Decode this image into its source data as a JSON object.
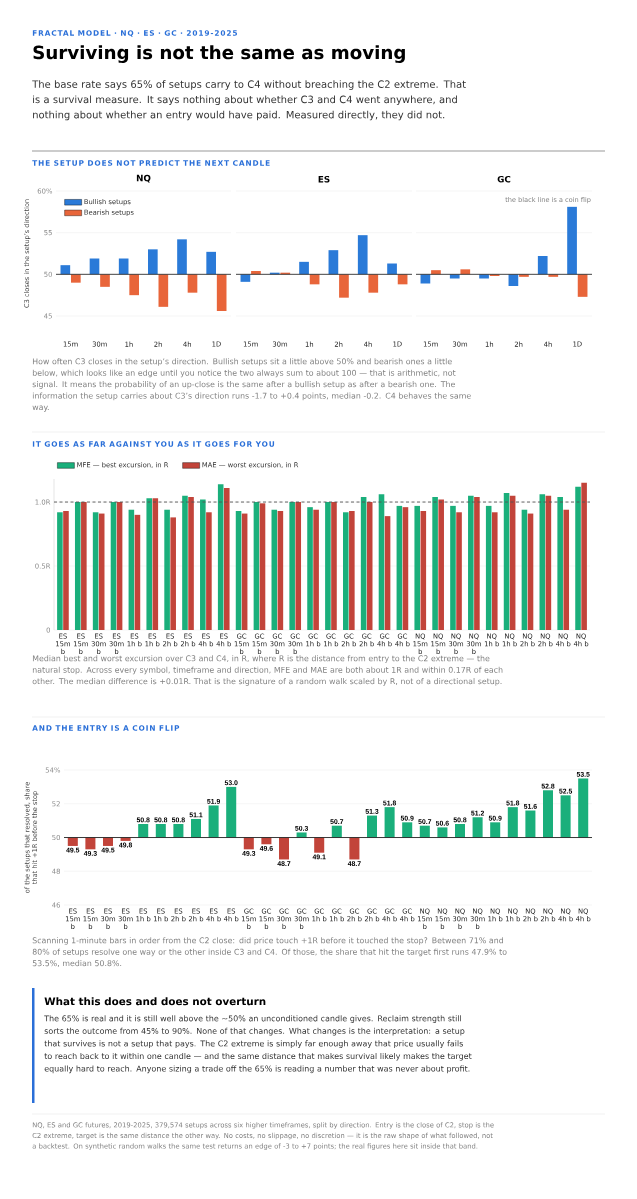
{
  "chart_data": [
    {
      "type": "other",
      "title": "Surviving is not the same as moving",
      "subtitle": "The base rate says 65% of setups carry to C4 without breaching the C2 extreme. That is a survival measure. It says nothing about whether C3 and C4 went anywhere, and nothing about whether an entry would have paid. Measured directly, they did not.",
      "annotations": [
        "FRACTAL MODEL · NQ · ES · GC · 2019-2025"
      ]
    },
    {
      "type": "bar",
      "title": "NQ",
      "ylabel": "C3 closes in the setup’s direction",
      "categories": [
        "15m",
        "30m",
        "1h",
        "2h",
        "4h",
        "1D"
      ],
      "series": [
        {
          "name": "Bullish setups",
          "color": "#2a7ad8",
          "base": [
            50,
            50,
            50,
            50,
            50,
            50
          ],
          "values": [
            1.1,
            1.9,
            1.9,
            3.0,
            4.2,
            2.7
          ]
        },
        {
          "name": "Bearish setups",
          "color": "#e8653a",
          "base": [
            50,
            50,
            50,
            50,
            50,
            50
          ],
          "values": [
            -1.0,
            -1.5,
            -2.5,
            -3.9,
            -2.2,
            -4.4
          ]
        }
      ],
      "ylim": [
        45,
        60
      ],
      "yticks": [
        45,
        50,
        55,
        {
          "value": 60,
          "label": "60%"
        }
      ],
      "grid": "y",
      "legend": "top left",
      "ref_lines": [
        {
          "axis": "y",
          "value": 50,
          "color": "#333333"
        }
      ],
      "annotations": [
        "THE SETUP DOES NOT PREDICT THE NEXT CANDLE",
        "How often C3 closes in the setup’s direction. Bullish setups sit a little above 50% and bearish ones a little below, which looks like an edge until you notice the two always sum to about 100 — that is arithmetic, not signal. It means the probability of an up-close is the same after a bullish setup as after a bearish one. The information the setup carries about C3’s direction runs -1.7 to +0.4 points, median -0.2. C4 behaves the same way."
      ]
    },
    {
      "type": "bar",
      "title": "ES",
      "categories": [
        "15m",
        "30m",
        "1h",
        "2h",
        "4h",
        "1D"
      ],
      "series": [
        {
          "color": "#2a7ad8",
          "base": [
            50,
            50,
            50,
            50,
            50,
            50
          ],
          "values": [
            -0.9,
            0.2,
            1.5,
            2.9,
            4.7,
            1.3
          ]
        },
        {
          "color": "#e8653a",
          "base": [
            50,
            50,
            50,
            50,
            50,
            50
          ],
          "values": [
            0.4,
            0.2,
            -1.2,
            -2.8,
            -2.2,
            -1.2
          ]
        }
      ],
      "ylim": [
        45,
        60
      ],
      "yticks": [
        45,
        50,
        55,
        60
      ],
      "grid": "y",
      "tick_labels": "x",
      "ref_lines": [
        {
          "axis": "y",
          "value": 50,
          "color": "#333333"
        }
      ]
    },
    {
      "type": "bar",
      "title": "GC",
      "categories": [
        "15m",
        "30m",
        "1h",
        "2h",
        "4h",
        "1D"
      ],
      "series": [
        {
          "color": "#2a7ad8",
          "base": [
            50,
            50,
            50,
            50,
            50,
            50
          ],
          "values": [
            -1.1,
            -0.5,
            -0.5,
            -1.4,
            2.2,
            8.1
          ]
        },
        {
          "color": "#e8653a",
          "base": [
            50,
            50,
            50,
            50,
            50,
            50
          ],
          "values": [
            0.5,
            0.6,
            -0.2,
            -0.3,
            -0.3,
            -2.7
          ]
        }
      ],
      "ylim": [
        45,
        60
      ],
      "yticks": [
        45,
        50,
        55,
        60
      ],
      "grid": "y",
      "tick_labels": "x",
      "ref_lines": [
        {
          "axis": "y",
          "value": 50,
          "color": "#333333"
        }
      ],
      "annotations": [
        "the black line is a coin flip"
      ]
    },
    {
      "type": "bar",
      "categories": [
        "ES 15m b",
        "ES 15m b",
        "ES 30m b",
        "ES 30m b",
        "ES 1h b",
        "ES 1h b",
        "ES 2h b",
        "ES 2h b",
        "ES 4h b",
        "ES 4h b",
        "GC 15m b",
        "GC 15m b",
        "GC 30m b",
        "GC 30m b",
        "GC 1h b",
        "GC 1h b",
        "GC 2h b",
        "GC 2h b",
        "GC 4h b",
        "GC 4h b",
        "NQ 15m b",
        "NQ 15m b",
        "NQ 30m b",
        "NQ 30m b",
        "NQ 1h b",
        "NQ 1h b",
        "NQ 2h b",
        "NQ 2h b",
        "NQ 4h b",
        "NQ 4h b"
      ],
      "series": [
        {
          "name": "MFE — best excursion, in R",
          "color": "#1aaf7b",
          "values": [
            0.92,
            1.0,
            0.92,
            1.0,
            0.94,
            1.03,
            0.94,
            1.05,
            1.02,
            1.14,
            0.93,
            1.0,
            0.94,
            1.0,
            0.96,
            1.0,
            0.92,
            1.04,
            1.06,
            0.97,
            0.97,
            1.04,
            0.97,
            1.05,
            0.97,
            1.07,
            0.94,
            1.06,
            1.04,
            1.12
          ]
        },
        {
          "name": "MAE — worst excursion, in R",
          "color": "#c2443a",
          "values": [
            0.93,
            1.0,
            0.91,
            1.0,
            0.9,
            1.03,
            0.88,
            1.04,
            0.92,
            1.11,
            0.91,
            0.99,
            0.93,
            1.0,
            0.94,
            1.0,
            0.93,
            1.0,
            0.89,
            0.96,
            0.93,
            1.02,
            0.92,
            1.04,
            0.92,
            1.05,
            0.91,
            1.05,
            0.94,
            1.15
          ]
        }
      ],
      "ylim": [
        0,
        1.18
      ],
      "yticks": [
        0,
        {
          "value": 0.5,
          "label": "0.5R"
        },
        {
          "value": 1,
          "label": "1.0R"
        }
      ],
      "grid": "y",
      "legend": "top left",
      "ref_lines": [
        {
          "axis": "y",
          "value": 1,
          "color": "#555555",
          "line_style": "dashed"
        }
      ],
      "annotations": [
        "IT GOES AS FAR AGAINST YOU AS IT GOES FOR YOU",
        "Median best and worst excursion over C3 and C4, in R, where R is the distance from entry to the C2 extreme — the natural stop. Across every symbol, timeframe and direction, MFE and MAE are both about 1R and within 0.17R of each other. The median difference is +0.01R. That is the signature of a random walk scaled by R, not of a directional setup."
      ]
    },
    {
      "type": "bar",
      "ylabel": "of the setups that resolved, share that hit +1R before the stop",
      "categories": [
        "ES 15m b",
        "ES 15m b",
        "ES 30m b",
        "ES 30m b",
        "ES 1h b",
        "ES 1h b",
        "ES 2h b",
        "ES 2h b",
        "ES 4h b",
        "ES 4h b",
        "GC 15m b",
        "GC 15m b",
        "GC 30m b",
        "GC 30m b",
        "GC 1h b",
        "GC 1h b",
        "GC 2h b",
        "GC 2h b",
        "GC 4h b",
        "GC 4h b",
        "NQ 15m b",
        "NQ 15m b",
        "NQ 30m b",
        "NQ 30m b",
        "NQ 1h b",
        "NQ 1h b",
        "NQ 2h b",
        "NQ 2h b",
        "NQ 4h b",
        "NQ 4h b"
      ],
      "base": [
        50,
        50,
        50,
        50,
        50,
        50,
        50,
        50,
        50,
        50,
        50,
        50,
        50,
        50,
        50,
        50,
        50,
        50,
        50,
        50,
        50,
        50,
        50,
        50,
        50,
        50,
        50,
        50,
        50,
        50
      ],
      "values": [
        -0.5,
        -0.7,
        -0.5,
        -0.2,
        0.8,
        0.8,
        0.8,
        1.1,
        1.9,
        3.0,
        -0.7,
        -0.4,
        -1.3,
        0.3,
        -0.9,
        0.7,
        -1.3,
        1.3,
        1.8,
        0.9,
        0.7,
        0.6,
        0.8,
        1.2,
        0.9,
        1.8,
        1.6,
        2.8,
        2.5,
        3.5
      ],
      "value_labels": [
        "49.5",
        "49.3",
        "49.5",
        "49.8",
        "50.8",
        "50.8",
        "50.8",
        "51.1",
        "51.9",
        "53.0",
        "49.3",
        "49.6",
        "48.7",
        "50.3",
        "49.1",
        "50.7",
        "48.7",
        "51.3",
        "51.8",
        "50.9",
        "50.7",
        "50.6",
        "50.8",
        "51.2",
        "50.9",
        "51.8",
        "51.6",
        "52.8",
        "52.5",
        "53.5"
      ],
      "colors": [
        "#c2443a",
        "#c2443a",
        "#c2443a",
        "#c2443a",
        "#1aaf7b",
        "#1aaf7b",
        "#1aaf7b",
        "#1aaf7b",
        "#1aaf7b",
        "#1aaf7b",
        "#c2443a",
        "#c2443a",
        "#c2443a",
        "#1aaf7b",
        "#c2443a",
        "#1aaf7b",
        "#c2443a",
        "#1aaf7b",
        "#1aaf7b",
        "#1aaf7b",
        "#1aaf7b",
        "#1aaf7b",
        "#1aaf7b",
        "#1aaf7b",
        "#1aaf7b",
        "#1aaf7b",
        "#1aaf7b",
        "#1aaf7b",
        "#1aaf7b",
        "#1aaf7b"
      ],
      "ylim": [
        46,
        54
      ],
      "yticks": [
        46,
        48,
        50,
        52,
        {
          "value": 54,
          "label": "54%"
        }
      ],
      "grid": "y",
      "ref_lines": [
        {
          "axis": "y",
          "value": 50,
          "color": "#222222"
        }
      ],
      "annotations": [
        "AND THE ENTRY IS A COIN FLIP",
        "Scanning 1-minute bars in order from the C2 close: did price touch +1R before it touched the stop? Between 71% and 80% of setups resolve one way or the other inside C3 and C4. Of those, the share that hit the target first runs 47.9% to 53.5%, median 50.8%."
      ]
    },
    {
      "type": "other",
      "title": "What this does and does not overturn",
      "annotations": [
        "The 65% is real and it is still well above the ~50% an unconditioned candle gives. Reclaim strength still sorts the outcome from 45% to 90%. None of that changes. What changes is the interpretation: a setup that survives is not a setup that pays. The C2 extreme is simply far enough away that price usually fails to reach back to it within one candle — and the same distance that makes survival likely makes the target equally hard to reach. Anyone sizing a trade off the 65% is reading a number that was never about profit.",
        "NQ, ES and GC futures, 2019-2025, 379,574 setups across six higher timeframes, split by direction. Entry is the close of C2, stop is the C2 extreme, target is the same distance the other way. No costs, no slippage, no discretion — it is the raw shape of what followed, not a backtest. On synthetic random walks the same test returns an edge of -3 to +7 points; the real figures here sit inside that band."
      ]
    }
  ]
}
